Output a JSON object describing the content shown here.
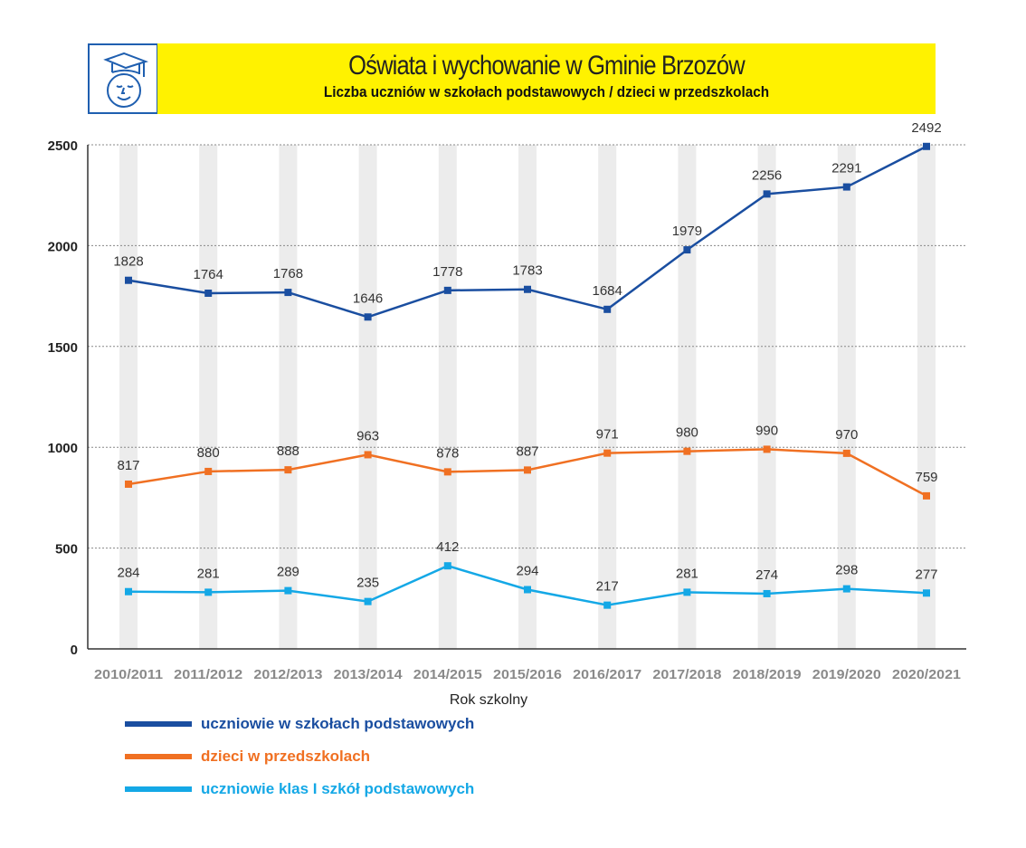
{
  "header": {
    "title": "Oświata i wychowanie w Gminie Brzozów",
    "subtitle": "Liczba uczniów w szkołach podstawowych / dzieci w przedszkolach",
    "logo_icon": "student-graduation-cap-icon"
  },
  "chart_data": {
    "type": "line",
    "title": "Oświata i wychowanie w Gminie Brzozów",
    "subtitle": "Liczba uczniów w szkołach podstawowych / dzieci w przedszkolach",
    "xlabel": "Rok szkolny",
    "ylabel": "",
    "ylim": [
      0,
      2500
    ],
    "yticks": [
      0,
      500,
      1000,
      1500,
      2000,
      2500
    ],
    "grid": true,
    "legend_position": "bottom-left",
    "categories": [
      "2010/2011",
      "2011/2012",
      "2012/2013",
      "2013/2014",
      "2014/2015",
      "2015/2016",
      "2016/2017",
      "2017/2018",
      "2018/2019",
      "2019/2020",
      "2020/2021"
    ],
    "series": [
      {
        "name": "uczniowie w szkołach podstawowych",
        "color": "#1a4ea0",
        "values": [
          1828,
          1764,
          1768,
          1646,
          1778,
          1783,
          1684,
          1979,
          2256,
          2291,
          2492
        ]
      },
      {
        "name": "dzieci w przedszkolach",
        "color": "#f07022",
        "values": [
          817,
          880,
          888,
          963,
          878,
          887,
          971,
          980,
          990,
          970,
          759
        ]
      },
      {
        "name": "uczniowie klas I szkół podstawowych",
        "color": "#14a8e6",
        "values": [
          284,
          281,
          289,
          235,
          412,
          294,
          217,
          281,
          274,
          298,
          277
        ]
      }
    ]
  }
}
